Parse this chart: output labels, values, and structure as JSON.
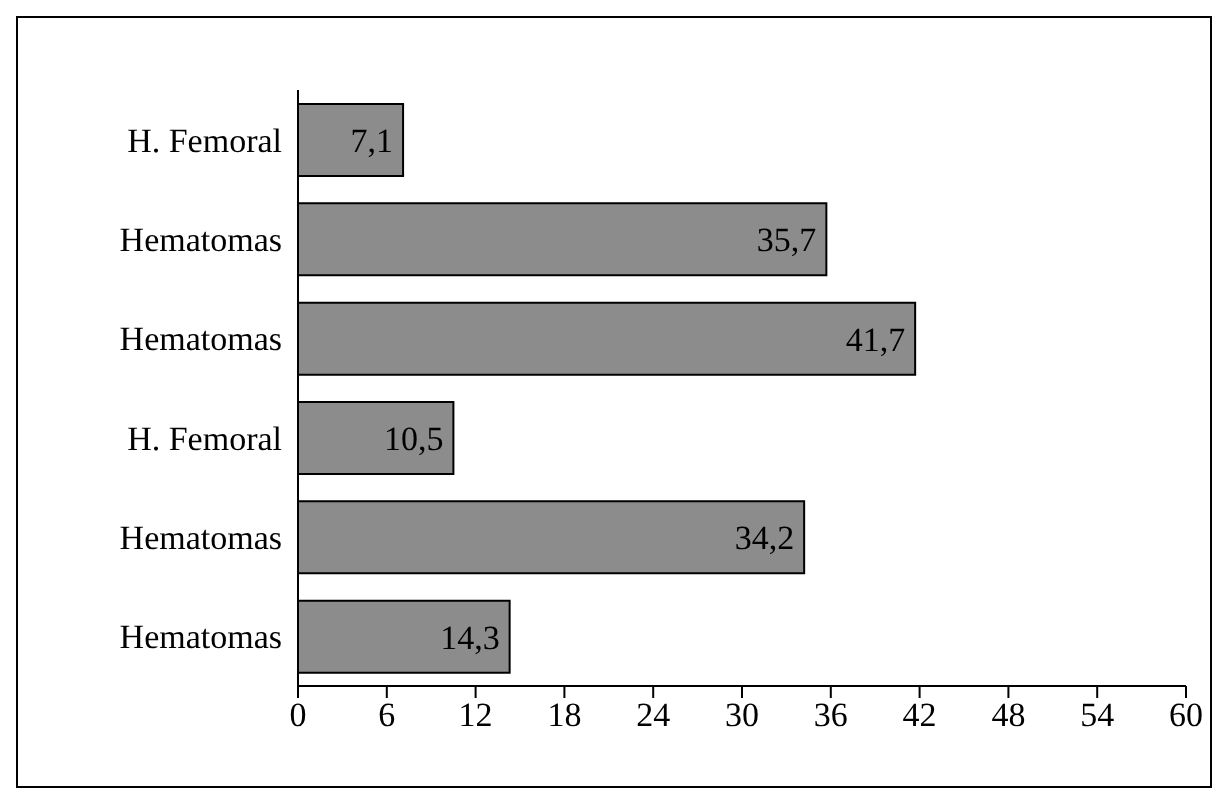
{
  "chart_data": {
    "type": "bar",
    "orientation": "horizontal",
    "categories": [
      "H. Femoral",
      "Hematomas",
      "Hematomas",
      "H. Femoral",
      "Hematomas",
      "Hematomas"
    ],
    "values": [
      7.1,
      35.7,
      41.7,
      10.5,
      34.2,
      14.3
    ],
    "value_labels": [
      "7,1",
      "35,7",
      "41,7",
      "10,5",
      "34,2",
      "14,3"
    ],
    "color": "#8c8c8c",
    "xlim": [
      0,
      60
    ],
    "xticks": [
      0,
      6,
      12,
      18,
      24,
      30,
      36,
      42,
      48,
      54,
      60
    ],
    "grid": false,
    "legend": false
  }
}
